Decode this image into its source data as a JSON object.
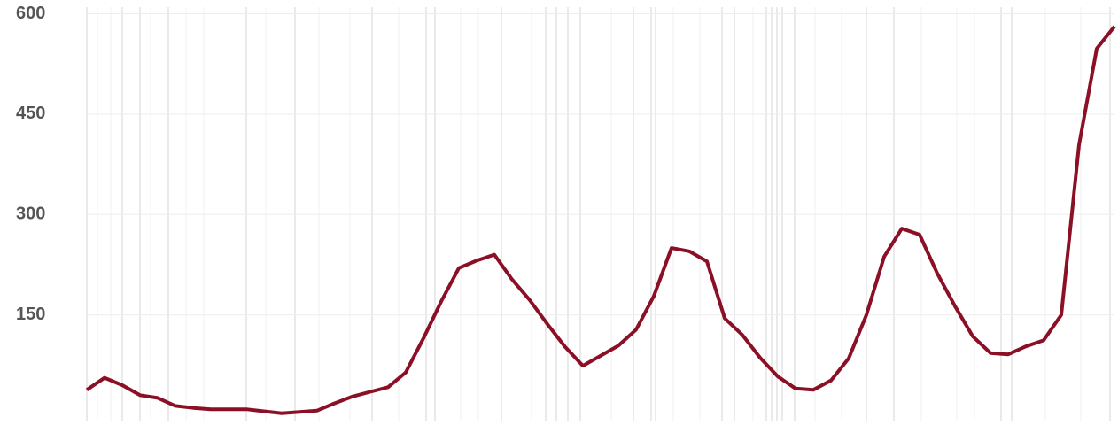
{
  "chart_data": {
    "type": "line",
    "categories": [
      null,
      null,
      null,
      null,
      null,
      null,
      null,
      null,
      null,
      null,
      null,
      null,
      null,
      null,
      null,
      null,
      null,
      null,
      null,
      null,
      null,
      null,
      null,
      null,
      null,
      null,
      null,
      null,
      null,
      null,
      null,
      null,
      null,
      null,
      null,
      null,
      null,
      null,
      null,
      null,
      null,
      null,
      null,
      null,
      null,
      null,
      null,
      null,
      null,
      null,
      null,
      null,
      null,
      null,
      null,
      null,
      null,
      null,
      null
    ],
    "series": [
      {
        "color": "#8b1026",
        "values": [
          38,
          56,
          45,
          30,
          26,
          14,
          11,
          9,
          9,
          9,
          6,
          3,
          5,
          7,
          18,
          28,
          35,
          42,
          64,
          115,
          170,
          220,
          231,
          240,
          203,
          172,
          136,
          102,
          74,
          89,
          104,
          128,
          178,
          250,
          245,
          230,
          145,
          120,
          86,
          58,
          40,
          38,
          52,
          85,
          150,
          237,
          279,
          270,
          212,
          163,
          118,
          93,
          91,
          103,
          112,
          150,
          404,
          548,
          581
        ]
      }
    ],
    "ylim": [
      0,
      610
    ],
    "yticks": [
      150,
      300,
      450,
      600
    ],
    "grid": true
  }
}
